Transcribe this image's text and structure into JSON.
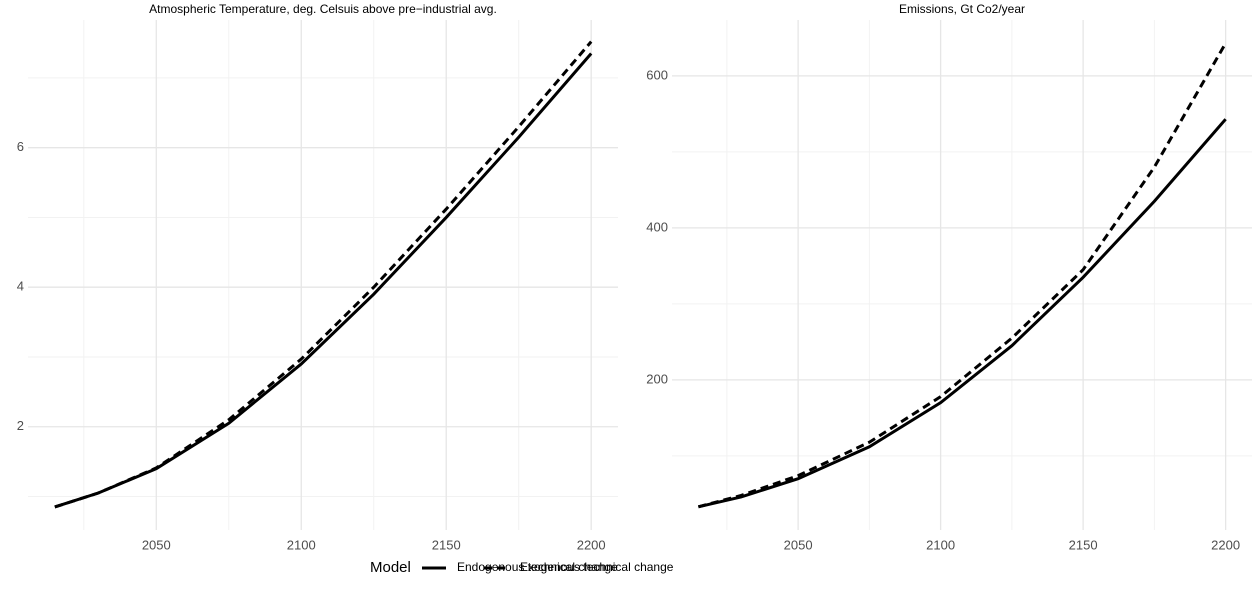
{
  "chart_data": [
    {
      "type": "line",
      "title": "Atmospheric Temperature, deg. Celsuis above pre−industrial avg.",
      "x": [
        2015,
        2030,
        2050,
        2075,
        2100,
        2125,
        2150,
        2175,
        2200
      ],
      "series": [
        {
          "name": "Endogenous technical change",
          "color": "#000000",
          "dash": "solid",
          "values": [
            0.85,
            1.05,
            1.4,
            2.05,
            2.9,
            3.9,
            5.0,
            6.15,
            7.35
          ]
        },
        {
          "name": "Exogenous technical change",
          "color": "#000000",
          "dash": "dashed",
          "values": [
            0.85,
            1.05,
            1.41,
            2.1,
            2.97,
            4.0,
            5.12,
            6.3,
            7.52
          ]
        }
      ],
      "xlim": [
        2005.75,
        2209.25
      ],
      "xticks": [
        2050,
        2100,
        2150,
        2200
      ],
      "xminorticks": [
        2025,
        2075,
        2125,
        2175
      ],
      "ylim": [
        0.52,
        7.83
      ],
      "yticks": [
        2,
        4,
        6
      ],
      "yminorticks": [
        1,
        3,
        5,
        7
      ],
      "grid": true
    },
    {
      "type": "line",
      "title": "Emissions, Gt Co2/year",
      "x": [
        2015,
        2030,
        2050,
        2075,
        2100,
        2125,
        2150,
        2175,
        2200
      ],
      "series": [
        {
          "name": "Endogenous technical change",
          "color": "#000000",
          "dash": "solid",
          "values": [
            33,
            46,
            70,
            112,
            170,
            245,
            335,
            435,
            543
          ]
        },
        {
          "name": "Exogenous technical change",
          "color": "#000000",
          "dash": "dashed",
          "values": [
            33,
            48,
            74,
            118,
            178,
            255,
            345,
            480,
            643
          ]
        }
      ],
      "xlim": [
        2005.75,
        2209.25
      ],
      "xticks": [
        2050,
        2100,
        2150,
        2200
      ],
      "xminorticks": [
        2025,
        2075,
        2125,
        2175
      ],
      "ylim": [
        2.5,
        673.5
      ],
      "yticks": [
        200,
        400,
        600
      ],
      "yminorticks": [
        100,
        300,
        500
      ],
      "grid": true
    }
  ],
  "legend": {
    "title": "Model",
    "position": "bottom"
  }
}
